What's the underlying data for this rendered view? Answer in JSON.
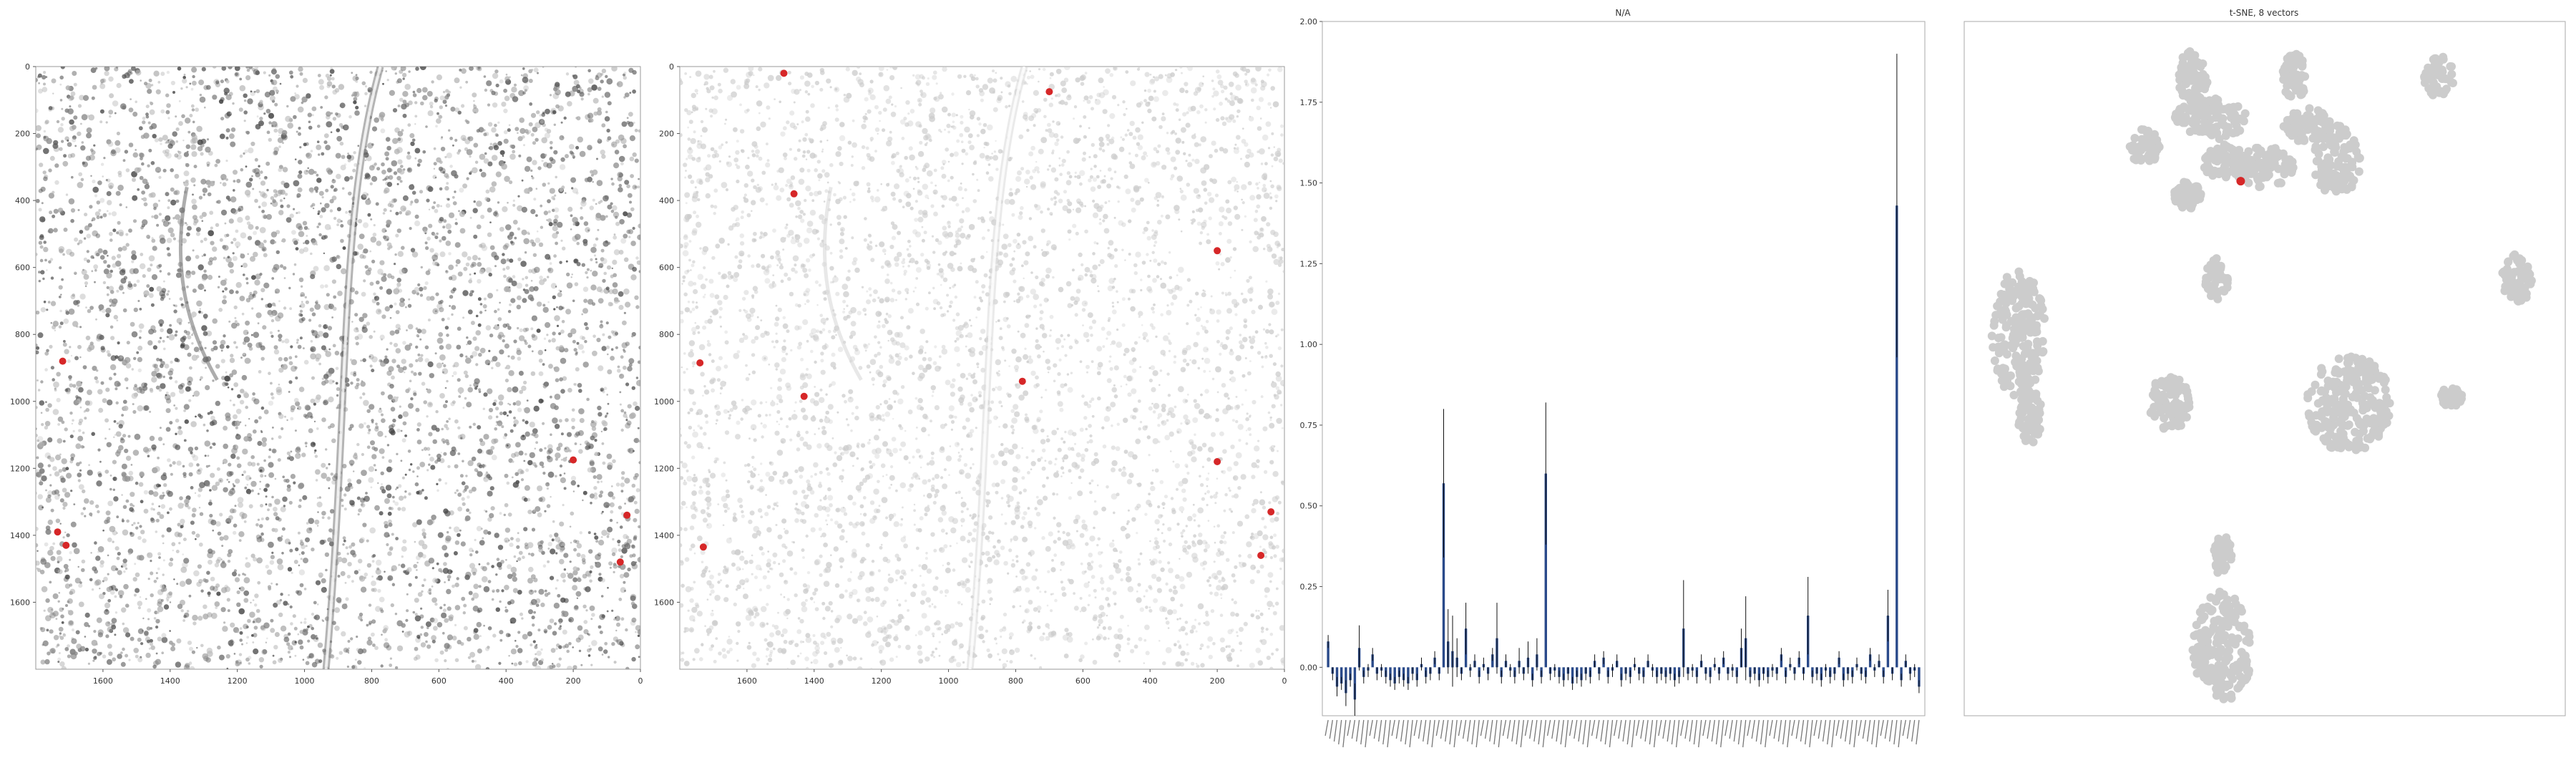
{
  "figure": {
    "panels": [
      {
        "id": "tissue-image",
        "title": "",
        "x_ticks": [
          "1600",
          "1400",
          "1200",
          "1000",
          "800",
          "600",
          "400",
          "200",
          "0"
        ],
        "y_ticks": [
          "0",
          "200",
          "400",
          "600",
          "800",
          "1000",
          "1200",
          "1400",
          "1600"
        ]
      },
      {
        "id": "cell-map",
        "title": "",
        "x_ticks": [
          "1600",
          "1400",
          "1200",
          "1000",
          "800",
          "600",
          "400",
          "200",
          "0"
        ],
        "y_ticks": [
          "0",
          "200",
          "400",
          "600",
          "800",
          "1000",
          "1200",
          "1400",
          "1600"
        ]
      },
      {
        "id": "bar-chart",
        "title": "N/A"
      },
      {
        "id": "tsne",
        "title": "t-SNE, 8 vectors"
      }
    ],
    "colors": {
      "highlight": "#d62728",
      "bar": "#2a4a8a",
      "error": "#111111",
      "cell_gray": "#cccccc",
      "tissue_dark": "#555555"
    }
  },
  "chart_data": [
    {
      "type": "scatter",
      "title": "",
      "xlim": [
        1800,
        0
      ],
      "ylim": [
        1800,
        0
      ],
      "highlighted_points": [
        {
          "x": 1720,
          "y": 880
        },
        {
          "x": 1735,
          "y": 1390
        },
        {
          "x": 1710,
          "y": 1430
        },
        {
          "x": 200,
          "y": 1175
        },
        {
          "x": 40,
          "y": 1340
        },
        {
          "x": 60,
          "y": 1480
        }
      ]
    },
    {
      "type": "scatter",
      "title": "",
      "xlim": [
        1800,
        0
      ],
      "ylim": [
        1800,
        0
      ],
      "highlighted_points": [
        {
          "x": 700,
          "y": 75
        },
        {
          "x": 1740,
          "y": 885
        },
        {
          "x": 1430,
          "y": 985
        },
        {
          "x": 780,
          "y": 940
        },
        {
          "x": 200,
          "y": 550
        },
        {
          "x": 200,
          "y": 1180
        },
        {
          "x": 40,
          "y": 1330
        },
        {
          "x": 70,
          "y": 1460
        },
        {
          "x": 1730,
          "y": 1435
        },
        {
          "x": 1490,
          "y": 20
        },
        {
          "x": 1460,
          "y": 380
        }
      ]
    },
    {
      "type": "bar",
      "title": "N/A",
      "ylim": [
        -0.15,
        2.0
      ],
      "y_ticks": [
        0.0,
        0.25,
        0.5,
        0.75,
        1.0,
        1.25,
        1.5,
        1.75,
        2.0
      ],
      "values": [
        0.08,
        -0.02,
        -0.06,
        -0.05,
        -0.08,
        -0.04,
        -0.1,
        0.06,
        -0.03,
        -0.01,
        0.04,
        -0.02,
        -0.01,
        -0.03,
        -0.04,
        -0.05,
        -0.03,
        -0.04,
        -0.05,
        -0.02,
        -0.04,
        0.01,
        -0.03,
        -0.02,
        0.03,
        -0.02,
        0.57,
        0.08,
        0.05,
        0.03,
        -0.02,
        0.12,
        -0.01,
        0.02,
        -0.03,
        0.01,
        -0.02,
        0.04,
        0.09,
        -0.03,
        0.02,
        -0.01,
        -0.03,
        0.02,
        -0.02,
        0.03,
        -0.04,
        0.04,
        -0.03,
        0.6,
        -0.02,
        -0.01,
        -0.03,
        -0.04,
        -0.02,
        -0.05,
        -0.03,
        -0.04,
        -0.02,
        -0.03,
        0.02,
        -0.02,
        0.03,
        -0.03,
        -0.01,
        0.02,
        -0.04,
        -0.02,
        -0.03,
        0.01,
        -0.02,
        -0.03,
        0.02,
        -0.01,
        -0.03,
        -0.02,
        -0.03,
        -0.02,
        -0.04,
        -0.03,
        0.12,
        -0.02,
        -0.01,
        -0.03,
        0.02,
        -0.02,
        -0.03,
        0.01,
        -0.02,
        0.03,
        -0.02,
        -0.01,
        -0.03,
        0.06,
        0.09,
        -0.03,
        -0.02,
        -0.04,
        -0.02,
        -0.03,
        -0.01,
        -0.02,
        0.04,
        -0.03,
        0.01,
        -0.02,
        0.03,
        -0.02,
        0.16,
        -0.03,
        -0.02,
        -0.04,
        -0.01,
        -0.03,
        -0.02,
        0.03,
        -0.04,
        -0.02,
        -0.03,
        0.01,
        -0.02,
        -0.03,
        0.04,
        -0.01,
        0.02,
        -0.03,
        0.16,
        -0.02,
        1.43,
        -0.04,
        0.02,
        -0.02,
        -0.01,
        -0.06
      ],
      "errors": [
        0.02,
        0.02,
        0.03,
        0.02,
        0.04,
        0.02,
        0.05,
        0.07,
        0.02,
        0.02,
        0.02,
        0.02,
        0.02,
        0.02,
        0.02,
        0.02,
        0.02,
        0.02,
        0.02,
        0.02,
        0.02,
        0.02,
        0.02,
        0.02,
        0.02,
        0.02,
        0.23,
        0.1,
        0.11,
        0.06,
        0.02,
        0.08,
        0.02,
        0.02,
        0.02,
        0.02,
        0.02,
        0.02,
        0.11,
        0.02,
        0.02,
        0.02,
        0.02,
        0.04,
        0.02,
        0.05,
        0.02,
        0.05,
        0.02,
        0.22,
        0.02,
        0.02,
        0.02,
        0.02,
        0.02,
        0.02,
        0.02,
        0.02,
        0.02,
        0.02,
        0.02,
        0.02,
        0.02,
        0.02,
        0.02,
        0.02,
        0.02,
        0.02,
        0.02,
        0.02,
        0.02,
        0.02,
        0.02,
        0.02,
        0.02,
        0.02,
        0.02,
        0.02,
        0.02,
        0.02,
        0.15,
        0.02,
        0.02,
        0.02,
        0.02,
        0.02,
        0.02,
        0.02,
        0.02,
        0.02,
        0.02,
        0.02,
        0.02,
        0.06,
        0.13,
        0.02,
        0.02,
        0.02,
        0.02,
        0.02,
        0.02,
        0.02,
        0.02,
        0.02,
        0.02,
        0.02,
        0.02,
        0.02,
        0.12,
        0.02,
        0.02,
        0.02,
        0.02,
        0.02,
        0.02,
        0.02,
        0.02,
        0.02,
        0.02,
        0.02,
        0.02,
        0.02,
        0.02,
        0.02,
        0.02,
        0.02,
        0.08,
        0.02,
        0.47,
        0.02,
        0.02,
        0.02,
        0.02,
        0.02
      ],
      "xtick_labels_note": "category labels are rotated and not legible"
    },
    {
      "type": "scatter",
      "title": "t-SNE, 8 vectors",
      "clusters": [
        {
          "cx": 0.38,
          "cy": 0.08,
          "rx": 0.025,
          "ry": 0.04
        },
        {
          "cx": 0.55,
          "cy": 0.08,
          "rx": 0.02,
          "ry": 0.035
        },
        {
          "cx": 0.79,
          "cy": 0.08,
          "rx": 0.025,
          "ry": 0.03
        },
        {
          "cx": 0.41,
          "cy": 0.14,
          "rx": 0.06,
          "ry": 0.03
        },
        {
          "cx": 0.57,
          "cy": 0.15,
          "rx": 0.04,
          "ry": 0.025
        },
        {
          "cx": 0.3,
          "cy": 0.18,
          "rx": 0.025,
          "ry": 0.025
        },
        {
          "cx": 0.43,
          "cy": 0.2,
          "rx": 0.035,
          "ry": 0.025
        },
        {
          "cx": 0.62,
          "cy": 0.2,
          "rx": 0.04,
          "ry": 0.05
        },
        {
          "cx": 0.5,
          "cy": 0.21,
          "rx": 0.05,
          "ry": 0.03
        },
        {
          "cx": 0.37,
          "cy": 0.25,
          "rx": 0.025,
          "ry": 0.02
        },
        {
          "cx": 0.42,
          "cy": 0.37,
          "rx": 0.02,
          "ry": 0.03
        },
        {
          "cx": 0.09,
          "cy": 0.45,
          "rx": 0.045,
          "ry": 0.09
        },
        {
          "cx": 0.11,
          "cy": 0.57,
          "rx": 0.02,
          "ry": 0.04
        },
        {
          "cx": 0.92,
          "cy": 0.37,
          "rx": 0.025,
          "ry": 0.035
        },
        {
          "cx": 0.34,
          "cy": 0.55,
          "rx": 0.035,
          "ry": 0.04
        },
        {
          "cx": 0.64,
          "cy": 0.55,
          "rx": 0.07,
          "ry": 0.07
        },
        {
          "cx": 0.81,
          "cy": 0.54,
          "rx": 0.018,
          "ry": 0.015
        },
        {
          "cx": 0.43,
          "cy": 0.9,
          "rx": 0.05,
          "ry": 0.08
        },
        {
          "cx": 0.43,
          "cy": 0.77,
          "rx": 0.015,
          "ry": 0.03
        }
      ],
      "highlighted_points": [
        {
          "x": 0.46,
          "y": 0.23
        }
      ]
    }
  ]
}
